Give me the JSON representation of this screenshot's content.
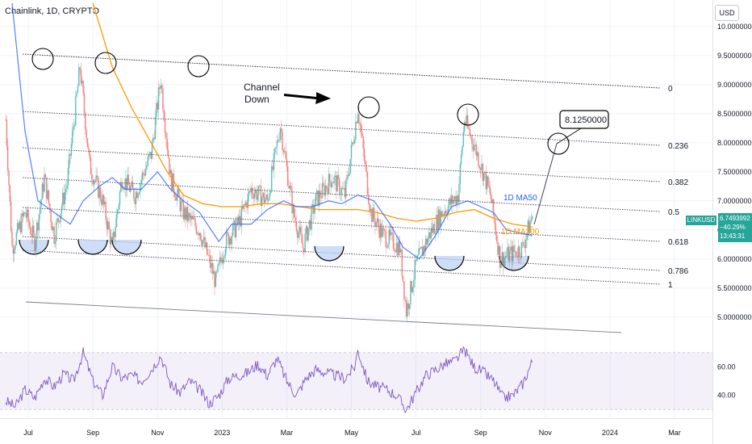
{
  "header": {
    "symbol_title": "Chainlink, 1D, CRYPTO",
    "currency_label": "USD"
  },
  "price_tag": {
    "ticker": "LINKUSD",
    "price": "6.7493992",
    "change": "−40.29%",
    "countdown": "13:43:31"
  },
  "annotations": {
    "channel_label_1": "Channel",
    "channel_label_2": "Down",
    "target_box": "8.1250000",
    "ma50_label": "1D MA50",
    "ma200_label": "1D MA200"
  },
  "chart_data": [
    {
      "type": "candlestick",
      "symbol": "LINKUSD",
      "timeframe": "1D",
      "y_axis": {
        "ticks": [
          5.0,
          5.5,
          6.0,
          6.5,
          7.0,
          7.5,
          8.0,
          8.5,
          9.0,
          9.5,
          10.0
        ],
        "tick_labels": [
          "5.0000000",
          "5.5000000",
          "6.0000000",
          "6.5000000",
          "7.0000000",
          "7.5000000",
          "8.0000000",
          "8.5000000",
          "9.0000000",
          "9.5000000",
          "10.0000000"
        ],
        "ylim": [
          4.65,
          10.4
        ]
      },
      "x_axis": {
        "tick_labels": [
          "Jul",
          "Sep",
          "Nov",
          "2023",
          "Mar",
          "May",
          "Jul",
          "Sep",
          "Nov",
          "2024",
          "Mar"
        ],
        "tick_positions_month_index": [
          1,
          3,
          5,
          7,
          9,
          11,
          13,
          15,
          17,
          19,
          21
        ],
        "xlim_month_index": [
          0.25,
          22.3
        ]
      },
      "price_path": [
        [
          0.3,
          8.4
        ],
        [
          0.5,
          6.2
        ],
        [
          0.9,
          6.8
        ],
        [
          1.2,
          6.3
        ],
        [
          1.5,
          7.4
        ],
        [
          1.8,
          6.4
        ],
        [
          2.2,
          7.3
        ],
        [
          2.6,
          9.3
        ],
        [
          2.9,
          7.6
        ],
        [
          3.3,
          7.0
        ],
        [
          3.6,
          6.2
        ],
        [
          3.9,
          7.4
        ],
        [
          4.3,
          7.1
        ],
        [
          4.8,
          7.8
        ],
        [
          5.1,
          9.1
        ],
        [
          5.4,
          7.4
        ],
        [
          5.8,
          6.8
        ],
        [
          6.3,
          6.5
        ],
        [
          6.8,
          5.6
        ],
        [
          7.1,
          6.3
        ],
        [
          7.5,
          6.6
        ],
        [
          7.9,
          7.2
        ],
        [
          8.4,
          7.0
        ],
        [
          8.8,
          8.3
        ],
        [
          9.2,
          6.8
        ],
        [
          9.5,
          6.2
        ],
        [
          9.9,
          7.0
        ],
        [
          10.4,
          7.4
        ],
        [
          10.8,
          7.1
        ],
        [
          11.2,
          8.6
        ],
        [
          11.6,
          6.8
        ],
        [
          12.0,
          6.4
        ],
        [
          12.5,
          6.2
        ],
        [
          12.7,
          5.1
        ],
        [
          13.0,
          5.9
        ],
        [
          13.4,
          6.4
        ],
        [
          13.8,
          6.8
        ],
        [
          14.3,
          7.1
        ],
        [
          14.5,
          8.4
        ],
        [
          14.9,
          7.8
        ],
        [
          15.3,
          7.1
        ],
        [
          15.6,
          6.0
        ],
        [
          16.0,
          6.1
        ],
        [
          16.3,
          6.2
        ],
        [
          16.6,
          6.75
        ]
      ],
      "ma50": [
        [
          0.5,
          10.4
        ],
        [
          0.9,
          8.2
        ],
        [
          1.3,
          7.0
        ],
        [
          1.8,
          6.8
        ],
        [
          2.3,
          6.6
        ],
        [
          2.7,
          7.0
        ],
        [
          3.2,
          7.25
        ],
        [
          3.6,
          7.4
        ],
        [
          4.0,
          7.2
        ],
        [
          4.5,
          7.2
        ],
        [
          5.0,
          7.5
        ],
        [
          5.4,
          7.2
        ],
        [
          5.8,
          7.0
        ],
        [
          6.3,
          6.8
        ],
        [
          6.9,
          6.3
        ],
        [
          7.3,
          6.6
        ],
        [
          7.9,
          6.6
        ],
        [
          8.4,
          6.85
        ],
        [
          8.9,
          7.0
        ],
        [
          9.3,
          6.9
        ],
        [
          9.8,
          6.9
        ],
        [
          10.3,
          7.0
        ],
        [
          10.7,
          6.95
        ],
        [
          11.2,
          7.1
        ],
        [
          11.7,
          7.0
        ],
        [
          12.2,
          6.6
        ],
        [
          12.6,
          6.2
        ],
        [
          13.1,
          6.0
        ],
        [
          13.6,
          6.4
        ],
        [
          14.1,
          6.9
        ],
        [
          14.6,
          7.0
        ],
        [
          15.0,
          6.9
        ],
        [
          15.4,
          6.8
        ],
        [
          15.8,
          6.5
        ],
        [
          16.2,
          6.45
        ],
        [
          16.6,
          6.4
        ]
      ],
      "ma200": [
        [
          3.0,
          10.4
        ],
        [
          3.6,
          9.3
        ],
        [
          4.2,
          8.6
        ],
        [
          4.8,
          8.0
        ],
        [
          5.3,
          7.5
        ],
        [
          5.8,
          7.1
        ],
        [
          6.4,
          6.95
        ],
        [
          7.0,
          6.9
        ],
        [
          7.6,
          6.9
        ],
        [
          8.2,
          6.95
        ],
        [
          8.8,
          6.95
        ],
        [
          9.4,
          6.9
        ],
        [
          10.0,
          6.85
        ],
        [
          10.6,
          6.85
        ],
        [
          11.2,
          6.85
        ],
        [
          11.8,
          6.8
        ],
        [
          12.4,
          6.7
        ],
        [
          13.0,
          6.65
        ],
        [
          13.6,
          6.7
        ],
        [
          14.2,
          6.8
        ],
        [
          14.8,
          6.85
        ],
        [
          15.4,
          6.7
        ],
        [
          16.0,
          6.6
        ],
        [
          16.6,
          6.55
        ]
      ],
      "fib_levels": [
        {
          "label": "0"
        },
        {
          "label": "0.236"
        },
        {
          "label": "0.382"
        },
        {
          "label": "0.5"
        },
        {
          "label": "0.618"
        },
        {
          "label": "0.786"
        },
        {
          "label": "1"
        }
      ]
    },
    {
      "type": "line",
      "indicator": "RSI",
      "y_axis": {
        "tick_labels": [
          "60.00",
          "40.00"
        ],
        "ticks": [
          60,
          40
        ],
        "ylim": [
          25,
          75
        ],
        "band": [
          30,
          70
        ]
      },
      "values": [
        [
          0.3,
          36
        ],
        [
          0.6,
          32
        ],
        [
          0.9,
          44
        ],
        [
          1.2,
          38
        ],
        [
          1.5,
          52
        ],
        [
          1.8,
          46
        ],
        [
          2.1,
          55
        ],
        [
          2.4,
          50
        ],
        [
          2.7,
          70
        ],
        [
          3.0,
          50
        ],
        [
          3.3,
          40
        ],
        [
          3.6,
          60
        ],
        [
          3.9,
          52
        ],
        [
          4.2,
          54
        ],
        [
          4.5,
          50
        ],
        [
          4.8,
          58
        ],
        [
          5.1,
          68
        ],
        [
          5.4,
          48
        ],
        [
          5.7,
          42
        ],
        [
          6.0,
          50
        ],
        [
          6.3,
          44
        ],
        [
          6.6,
          34
        ],
        [
          6.9,
          40
        ],
        [
          7.2,
          52
        ],
        [
          7.5,
          54
        ],
        [
          7.8,
          56
        ],
        [
          8.1,
          62
        ],
        [
          8.4,
          54
        ],
        [
          8.7,
          66
        ],
        [
          9.0,
          50
        ],
        [
          9.3,
          40
        ],
        [
          9.6,
          52
        ],
        [
          9.9,
          58
        ],
        [
          10.2,
          56
        ],
        [
          10.5,
          54
        ],
        [
          10.8,
          52
        ],
        [
          11.1,
          60
        ],
        [
          11.2,
          72
        ],
        [
          11.5,
          50
        ],
        [
          11.8,
          46
        ],
        [
          12.1,
          44
        ],
        [
          12.4,
          40
        ],
        [
          12.7,
          30
        ],
        [
          13.0,
          42
        ],
        [
          13.3,
          54
        ],
        [
          13.6,
          58
        ],
        [
          13.9,
          62
        ],
        [
          14.2,
          64
        ],
        [
          14.5,
          72
        ],
        [
          14.8,
          60
        ],
        [
          15.1,
          56
        ],
        [
          15.4,
          50
        ],
        [
          15.7,
          38
        ],
        [
          16.0,
          40
        ],
        [
          16.3,
          48
        ],
        [
          16.6,
          64
        ]
      ]
    }
  ]
}
